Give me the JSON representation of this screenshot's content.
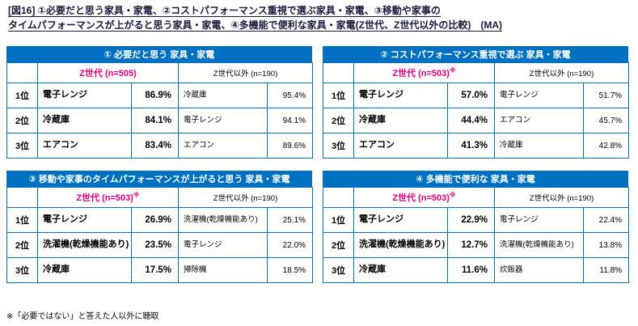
{
  "page": {
    "title": "[図16] ①必要だと思う家具・家電、②コストパフォーマンス重視で選ぶ家具・家電、③移動や家事の\nタイムパフォーマンスが上がると思う家具・家電、④多機能で便利な家具・家電(Z世代、Z世代以外の比較)　(MA)",
    "footnote": "※「必要ではない」と答えた人以外に聴取"
  },
  "colors": {
    "header_blue": "#0070C0",
    "z_generation_pink": "#E4007F",
    "border_blue": "#0070C0",
    "background": "#FFFFFF"
  },
  "tables": [
    {
      "title": "① 必要だと思う 家具・家電",
      "z_header": "Z世代 (n=505)",
      "z_note": "",
      "other_header": "Z世代以外 (n=190)",
      "rows": [
        {
          "rank": "1位",
          "z_item": "電子レンジ",
          "z_pct": "86.9%",
          "o_item": "冷蔵庫",
          "o_pct": "95.4%"
        },
        {
          "rank": "2位",
          "z_item": "冷蔵庫",
          "z_pct": "84.1%",
          "o_item": "電子レンジ",
          "o_pct": "94.1%"
        },
        {
          "rank": "3位",
          "z_item": "エアコン",
          "z_pct": "83.4%",
          "o_item": "エアコン",
          "o_pct": "89.6%"
        }
      ]
    },
    {
      "title": "② コストパフォーマンス重視で選ぶ 家具・家電",
      "z_header": "Z世代 (n=503)",
      "z_note": "※",
      "other_header": "Z世代以外 (n=190)",
      "rows": [
        {
          "rank": "1位",
          "z_item": "電子レンジ",
          "z_pct": "57.0%",
          "o_item": "電子レンジ",
          "o_pct": "51.7%"
        },
        {
          "rank": "2位",
          "z_item": "冷蔵庫",
          "z_pct": "44.4%",
          "o_item": "エアコン",
          "o_pct": "45.7%"
        },
        {
          "rank": "3位",
          "z_item": "エアコン",
          "z_pct": "41.3%",
          "o_item": "冷蔵庫",
          "o_pct": "42.8%"
        }
      ]
    },
    {
      "title": "③ 移動や家事のタイムパフォーマンスが上がると思う 家具・家電",
      "z_header": "Z世代 (n=503)",
      "z_note": "※",
      "other_header": "Z世代以外 (n=190)",
      "rows": [
        {
          "rank": "1位",
          "z_item": "電子レンジ",
          "z_pct": "26.9%",
          "o_item": "洗濯機(乾燥機能あり)",
          "o_pct": "25.1%"
        },
        {
          "rank": "2位",
          "z_item": "洗濯機(乾燥機能あり)",
          "z_pct": "23.5%",
          "o_item": "電子レンジ",
          "o_pct": "22.0%"
        },
        {
          "rank": "3位",
          "z_item": "冷蔵庫",
          "z_pct": "17.5%",
          "o_item": "掃除機",
          "o_pct": "18.5%"
        }
      ]
    },
    {
      "title": "④ 多機能で便利な 家具・家電",
      "z_header": "Z世代 (n=503)",
      "z_note": "※",
      "other_header": "Z世代以外 (n=190)",
      "rows": [
        {
          "rank": "1位",
          "z_item": "電子レンジ",
          "z_pct": "22.9%",
          "o_item": "電子レンジ",
          "o_pct": "22.4%"
        },
        {
          "rank": "2位",
          "z_item": "洗濯機(乾燥機能あり)",
          "z_pct": "12.7%",
          "o_item": "洗濯機(乾燥機能あり)",
          "o_pct": "13.8%"
        },
        {
          "rank": "3位",
          "z_item": "冷蔵庫",
          "z_pct": "11.6%",
          "o_item": "炊飯器",
          "o_pct": "11.8%"
        }
      ]
    }
  ]
}
